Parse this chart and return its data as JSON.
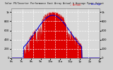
{
  "title": "Solar PV/Inverter Performance East Array Actual & Average Power Output",
  "bg_color": "#d0d0d0",
  "plot_bg_color": "#d8d8d8",
  "fill_color": "#dd0000",
  "line_color": "#cc0000",
  "avg_line_color": "#0000cc",
  "max_line_color": "#ff00ff",
  "text_color": "#000000",
  "grid_color": "#ffffff",
  "n_points": 288,
  "legend_actual": "Actual",
  "legend_avg": "Average",
  "x_labels": [
    "6a",
    "8a",
    "10a",
    "12p",
    "2p",
    "4p",
    "6p",
    "8p",
    "10p",
    "10p"
  ],
  "y_labels_left": [
    "1k",
    "800",
    "600",
    "400",
    "200",
    "0"
  ],
  "y_labels_right": [
    "1k",
    "800",
    "600",
    "400",
    "200",
    "0"
  ]
}
